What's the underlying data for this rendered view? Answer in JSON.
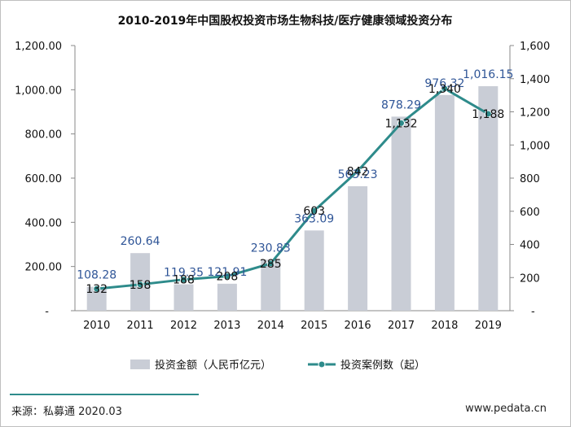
{
  "chart_data": {
    "type": "bar+line",
    "title": "2010-2019年中国股权投资市场生物科技/医疗健康领域投资分布",
    "categories": [
      "2010",
      "2011",
      "2012",
      "2013",
      "2014",
      "2015",
      "2016",
      "2017",
      "2018",
      "2019"
    ],
    "series": [
      {
        "name": "投资金额（人民币亿元）",
        "type": "bar",
        "axis": "left",
        "values": [
          108.28,
          260.64,
          119.35,
          121.91,
          230.83,
          363.09,
          563.23,
          878.29,
          976.32,
          1016.15
        ],
        "labels": [
          "108.28",
          "260.64",
          "119.35",
          "121.91",
          "230.83",
          "363.09",
          "563.23",
          "878.29",
          "976.32",
          "1,016.15"
        ]
      },
      {
        "name": "投资案例数（起）",
        "type": "line",
        "axis": "right",
        "values": [
          132,
          158,
          188,
          208,
          285,
          603,
          842,
          1132,
          1340,
          1188
        ],
        "labels": [
          "132",
          "158",
          "188",
          "208",
          "285",
          "603",
          "842",
          "1,132",
          "1,340",
          "1,188"
        ]
      }
    ],
    "y_left": {
      "min": 0,
      "max": 1200,
      "ticks": [
        "-",
        "200.00",
        "400.00",
        "600.00",
        "800.00",
        "1,000.00",
        "1,200.00"
      ]
    },
    "y_right": {
      "min": 0,
      "max": 1600,
      "ticks": [
        "-",
        "200",
        "400",
        "600",
        "800",
        "1,000",
        "1,200",
        "1,400",
        "1,600"
      ]
    },
    "colors": {
      "bar": "#c9cdd6",
      "line": "#2e8b8b",
      "marker": "#2e8b8b",
      "bar_label": "#2f5597",
      "line_label": "#111111"
    }
  },
  "footer": {
    "source": "来源：私募通 2020.03",
    "website": "www.pedata.cn"
  }
}
